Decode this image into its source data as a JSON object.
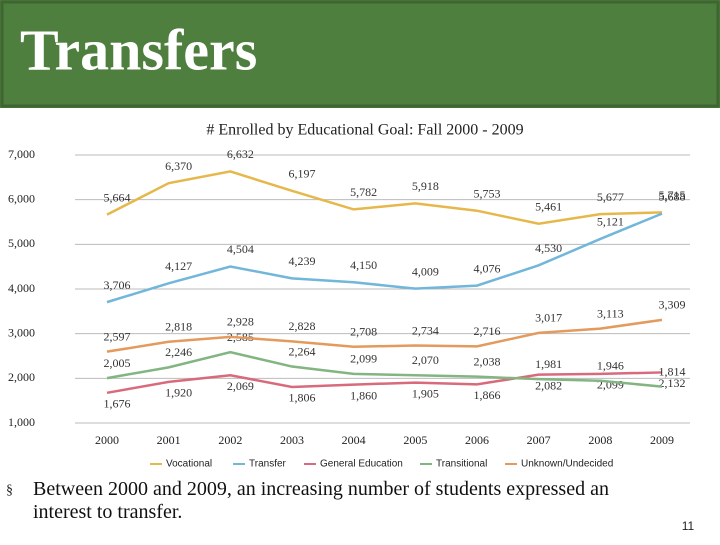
{
  "header": {
    "title": "Transfers"
  },
  "chart_data": {
    "type": "line",
    "title": "# Enrolled by Educational Goal: Fall 2000 - 2009",
    "categories": [
      "2000",
      "2001",
      "2002",
      "2003",
      "2004",
      "2005",
      "2006",
      "2007",
      "2008",
      "2009"
    ],
    "series": [
      {
        "name": "Vocational",
        "color": "#e6b84c",
        "values": [
          5664,
          6370,
          6632,
          6197,
          5782,
          5918,
          5753,
          5461,
          5677,
          5715
        ],
        "value_labels": [
          "5,664",
          "6,370",
          "6,632",
          "6,197",
          "5,782",
          "5,918",
          "5,753",
          "5,461",
          "5,677",
          "5,715"
        ]
      },
      {
        "name": "Transfer",
        "color": "#72b6d9",
        "values": [
          3706,
          4127,
          4504,
          4239,
          4150,
          4009,
          4076,
          4530,
          5121,
          5688
        ],
        "value_labels": [
          "3,706",
          "4,127",
          "4,504",
          "4,239",
          "4,150",
          "4,009",
          "4,076",
          "4,530",
          "5,121",
          "5,688"
        ]
      },
      {
        "name": "General Education",
        "color": "#d86a7c",
        "values": [
          1676,
          1920,
          2069,
          1806,
          1860,
          1905,
          1866,
          2082,
          2099,
          2132
        ],
        "value_labels": [
          "1,676",
          "1,920",
          "2,069",
          "1,806",
          "1,860",
          "1,905",
          "1,866",
          "2,082",
          "2,099",
          "2,132"
        ]
      },
      {
        "name": "Transitional",
        "color": "#82b582",
        "values": [
          2005,
          2246,
          2585,
          2264,
          2099,
          2070,
          2038,
          1981,
          1946,
          1814
        ],
        "value_labels": [
          "2,005",
          "2,246",
          "2,585",
          "2,264",
          "2,099",
          "2,070",
          "2,038",
          "1,981",
          "1,946",
          "1,814"
        ]
      },
      {
        "name": "Unknown/Undecided",
        "color": "#e39a5c",
        "values": [
          2597,
          2818,
          2928,
          2828,
          2708,
          2734,
          2716,
          3017,
          3113,
          3309
        ],
        "value_labels": [
          "2,597",
          "2,818",
          "2,928",
          "2,828",
          "2,708",
          "2,734",
          "2,716",
          "3,017",
          "3,113",
          "3,309"
        ]
      }
    ],
    "ylim": [
      1000,
      7000
    ],
    "yticks": [
      {
        "value": 1000,
        "label": "1,000"
      },
      {
        "value": 2000,
        "label": "2,000"
      },
      {
        "value": 3000,
        "label": "3,000"
      },
      {
        "value": 4000,
        "label": "4,000"
      },
      {
        "value": 5000,
        "label": "5,000"
      },
      {
        "value": 6000,
        "label": "6,000"
      },
      {
        "value": 7000,
        "label": "7,000"
      }
    ],
    "grid": true
  },
  "bullet": "Between 2000 and 2009, an increasing number of students expressed an interest to transfer.",
  "page_number": "11"
}
